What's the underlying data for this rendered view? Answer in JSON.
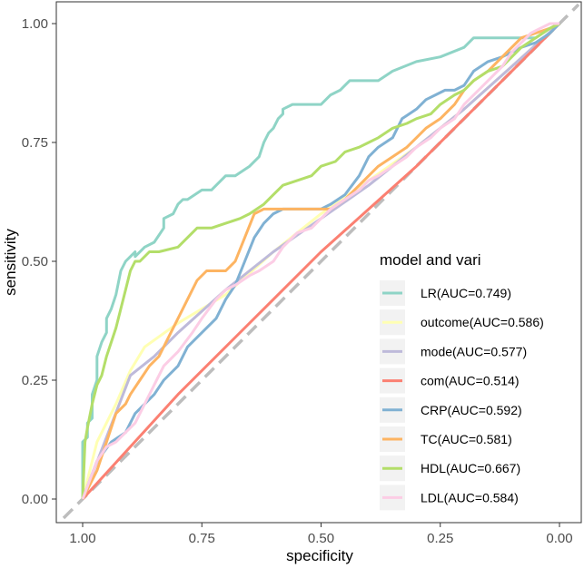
{
  "chart_data": {
    "type": "line",
    "title": "",
    "xlabel": "specificity",
    "ylabel": "sensitivity",
    "x_reversed": true,
    "xlim": [
      1.0,
      0.0
    ],
    "ylim": [
      0.0,
      1.0
    ],
    "x_ticks": [
      1.0,
      0.75,
      0.5,
      0.25,
      0.0
    ],
    "x_tick_labels": [
      "1.00",
      "0.75",
      "0.50",
      "0.25",
      "0.00"
    ],
    "y_ticks": [
      0.0,
      0.25,
      0.5,
      0.75,
      1.0
    ],
    "y_tick_labels": [
      "0.00",
      "0.25",
      "0.50",
      "0.75",
      "1.00"
    ],
    "grid": false,
    "reference_line": {
      "style": "dashed",
      "color": "#bdbdbd",
      "points": [
        [
          1.04,
          -0.04
        ],
        [
          -0.04,
          1.04
        ]
      ]
    },
    "legend": {
      "title": "model and vari",
      "position": "bottom-right"
    },
    "series": [
      {
        "name": "LR(AUC=0.749)",
        "color": "#8fd4c6",
        "x": [
          1.0,
          1.0,
          0.99,
          0.99,
          0.98,
          0.98,
          0.97,
          0.97,
          0.96,
          0.95,
          0.95,
          0.94,
          0.93,
          0.92,
          0.91,
          0.9,
          0.89,
          0.89,
          0.87,
          0.85,
          0.83,
          0.83,
          0.81,
          0.8,
          0.79,
          0.78,
          0.75,
          0.73,
          0.7,
          0.68,
          0.65,
          0.63,
          0.62,
          0.61,
          0.6,
          0.59,
          0.58,
          0.58,
          0.56,
          0.54,
          0.5,
          0.48,
          0.46,
          0.44,
          0.42,
          0.4,
          0.38,
          0.35,
          0.3,
          0.25,
          0.2,
          0.18,
          0.15,
          0.12,
          0.1,
          0.05,
          0.02,
          0.0
        ],
        "y": [
          0.0,
          0.12,
          0.13,
          0.16,
          0.17,
          0.22,
          0.25,
          0.3,
          0.33,
          0.35,
          0.38,
          0.4,
          0.43,
          0.48,
          0.5,
          0.51,
          0.52,
          0.51,
          0.53,
          0.54,
          0.57,
          0.59,
          0.6,
          0.62,
          0.63,
          0.63,
          0.65,
          0.65,
          0.68,
          0.68,
          0.7,
          0.72,
          0.75,
          0.77,
          0.78,
          0.8,
          0.81,
          0.82,
          0.83,
          0.83,
          0.83,
          0.85,
          0.86,
          0.88,
          0.88,
          0.88,
          0.88,
          0.9,
          0.92,
          0.93,
          0.95,
          0.97,
          0.97,
          0.97,
          0.97,
          0.97,
          0.99,
          1.0
        ]
      },
      {
        "name": "outcome(AUC=0.586)",
        "color": "#ffffb3",
        "x": [
          1.0,
          0.97,
          0.93,
          0.9,
          0.87,
          0.8,
          0.75,
          0.7,
          0.6,
          0.5,
          0.4,
          0.3,
          0.2,
          0.1,
          0.0
        ],
        "y": [
          0.0,
          0.12,
          0.2,
          0.27,
          0.32,
          0.37,
          0.4,
          0.43,
          0.52,
          0.6,
          0.67,
          0.74,
          0.82,
          0.91,
          1.0
        ]
      },
      {
        "name": "mode(AUC=0.577)",
        "color": "#bebada",
        "x": [
          1.0,
          0.95,
          0.9,
          0.85,
          0.8,
          0.7,
          0.6,
          0.5,
          0.4,
          0.3,
          0.2,
          0.1,
          0.0
        ],
        "y": [
          0.0,
          0.13,
          0.26,
          0.3,
          0.35,
          0.44,
          0.52,
          0.59,
          0.66,
          0.74,
          0.82,
          0.91,
          1.0
        ]
      },
      {
        "name": "com(AUC=0.514)",
        "color": "#fb8072",
        "x": [
          1.0,
          0.9,
          0.8,
          0.7,
          0.6,
          0.5,
          0.4,
          0.3,
          0.2,
          0.1,
          0.0
        ],
        "y": [
          0.0,
          0.11,
          0.22,
          0.32,
          0.42,
          0.52,
          0.61,
          0.7,
          0.8,
          0.9,
          1.0
        ]
      },
      {
        "name": "CRP(AUC=0.592)",
        "color": "#80b1d3",
        "x": [
          1.0,
          0.97,
          0.94,
          0.91,
          0.89,
          0.87,
          0.85,
          0.83,
          0.8,
          0.78,
          0.75,
          0.72,
          0.7,
          0.68,
          0.66,
          0.64,
          0.62,
          0.6,
          0.58,
          0.55,
          0.52,
          0.5,
          0.48,
          0.45,
          0.42,
          0.4,
          0.38,
          0.35,
          0.33,
          0.3,
          0.28,
          0.26,
          0.24,
          0.22,
          0.2,
          0.18,
          0.15,
          0.12,
          0.1,
          0.08,
          0.05,
          0.02,
          0.0
        ],
        "y": [
          0.0,
          0.08,
          0.12,
          0.14,
          0.18,
          0.2,
          0.22,
          0.25,
          0.28,
          0.32,
          0.35,
          0.38,
          0.42,
          0.45,
          0.5,
          0.55,
          0.58,
          0.6,
          0.61,
          0.61,
          0.61,
          0.61,
          0.62,
          0.64,
          0.68,
          0.72,
          0.74,
          0.76,
          0.8,
          0.82,
          0.84,
          0.85,
          0.86,
          0.86,
          0.87,
          0.9,
          0.92,
          0.93,
          0.94,
          0.95,
          0.96,
          0.98,
          1.0
        ]
      },
      {
        "name": "TC(AUC=0.581)",
        "color": "#fdb462",
        "x": [
          1.0,
          0.97,
          0.95,
          0.93,
          0.91,
          0.9,
          0.88,
          0.86,
          0.84,
          0.82,
          0.8,
          0.78,
          0.76,
          0.74,
          0.72,
          0.7,
          0.68,
          0.66,
          0.64,
          0.62,
          0.6,
          0.58,
          0.55,
          0.52,
          0.5,
          0.48,
          0.45,
          0.42,
          0.4,
          0.38,
          0.35,
          0.32,
          0.3,
          0.28,
          0.25,
          0.22,
          0.2,
          0.18,
          0.15,
          0.12,
          0.1,
          0.08,
          0.05,
          0.02,
          0.0
        ],
        "y": [
          0.0,
          0.06,
          0.12,
          0.18,
          0.2,
          0.22,
          0.25,
          0.28,
          0.3,
          0.34,
          0.38,
          0.42,
          0.46,
          0.48,
          0.48,
          0.48,
          0.5,
          0.55,
          0.6,
          0.61,
          0.61,
          0.61,
          0.61,
          0.61,
          0.61,
          0.61,
          0.63,
          0.66,
          0.68,
          0.7,
          0.72,
          0.74,
          0.76,
          0.78,
          0.8,
          0.83,
          0.86,
          0.88,
          0.9,
          0.93,
          0.95,
          0.97,
          0.98,
          0.99,
          1.0
        ]
      },
      {
        "name": "HDL(AUC=0.667)",
        "color": "#b3de69",
        "x": [
          1.0,
          0.995,
          0.99,
          0.98,
          0.97,
          0.96,
          0.95,
          0.94,
          0.93,
          0.92,
          0.91,
          0.9,
          0.89,
          0.88,
          0.86,
          0.84,
          0.8,
          0.78,
          0.76,
          0.73,
          0.7,
          0.67,
          0.65,
          0.62,
          0.6,
          0.58,
          0.55,
          0.52,
          0.5,
          0.47,
          0.45,
          0.42,
          0.4,
          0.38,
          0.35,
          0.32,
          0.3,
          0.27,
          0.25,
          0.22,
          0.2,
          0.18,
          0.15,
          0.12,
          0.1,
          0.08,
          0.05,
          0.02,
          0.0
        ],
        "y": [
          0.0,
          0.12,
          0.15,
          0.2,
          0.24,
          0.26,
          0.3,
          0.33,
          0.36,
          0.4,
          0.44,
          0.48,
          0.5,
          0.5,
          0.52,
          0.52,
          0.53,
          0.55,
          0.57,
          0.57,
          0.58,
          0.59,
          0.6,
          0.62,
          0.64,
          0.66,
          0.67,
          0.68,
          0.7,
          0.71,
          0.73,
          0.74,
          0.75,
          0.76,
          0.78,
          0.79,
          0.8,
          0.81,
          0.83,
          0.85,
          0.86,
          0.88,
          0.9,
          0.91,
          0.93,
          0.95,
          0.97,
          0.99,
          1.0
        ]
      },
      {
        "name": "LDL(AUC=0.584)",
        "color": "#fccde5",
        "x": [
          1.0,
          0.97,
          0.95,
          0.93,
          0.91,
          0.89,
          0.87,
          0.85,
          0.83,
          0.8,
          0.77,
          0.75,
          0.72,
          0.7,
          0.68,
          0.65,
          0.63,
          0.6,
          0.58,
          0.55,
          0.52,
          0.5,
          0.48,
          0.45,
          0.42,
          0.4,
          0.38,
          0.35,
          0.32,
          0.3,
          0.27,
          0.25,
          0.22,
          0.2,
          0.17,
          0.15,
          0.12,
          0.1,
          0.08,
          0.06,
          0.04,
          0.02,
          0.0
        ],
        "y": [
          0.0,
          0.08,
          0.11,
          0.12,
          0.14,
          0.16,
          0.2,
          0.24,
          0.28,
          0.31,
          0.35,
          0.38,
          0.42,
          0.44,
          0.45,
          0.47,
          0.48,
          0.5,
          0.53,
          0.56,
          0.57,
          0.59,
          0.61,
          0.63,
          0.65,
          0.67,
          0.68,
          0.7,
          0.72,
          0.74,
          0.76,
          0.78,
          0.8,
          0.83,
          0.86,
          0.88,
          0.91,
          0.94,
          0.96,
          0.98,
          0.99,
          1.0,
          1.0
        ]
      }
    ]
  }
}
